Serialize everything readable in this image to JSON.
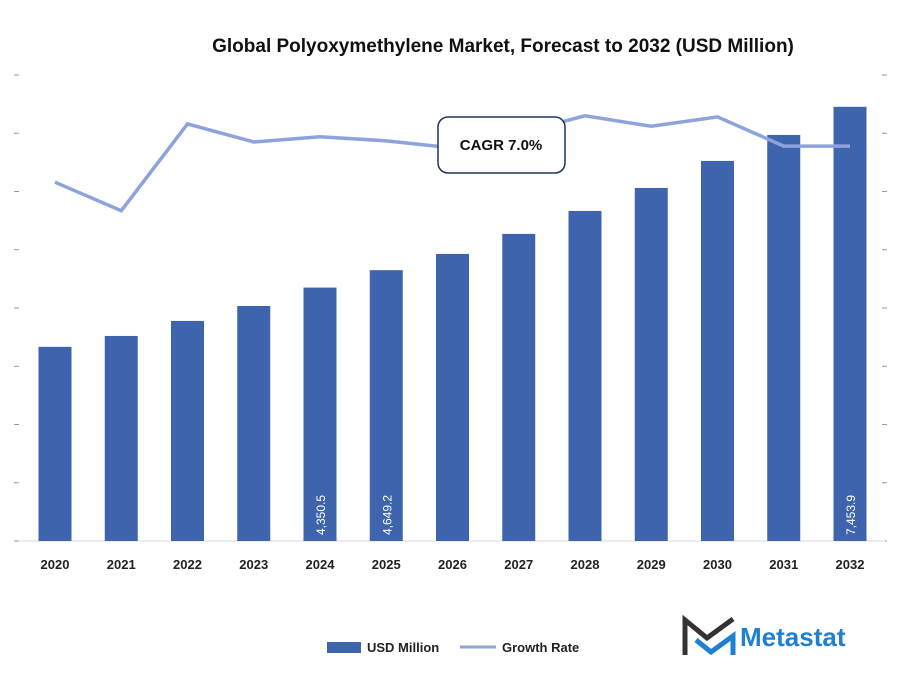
{
  "chart_data": {
    "type": "bar",
    "title": "Global Polyoxymethylene Market, Forecast to 2032 (USD Million)",
    "categories": [
      "2020",
      "2021",
      "2022",
      "2023",
      "2024",
      "2025",
      "2026",
      "2027",
      "2028",
      "2029",
      "2030",
      "2031",
      "2032"
    ],
    "series": [
      {
        "name": "USD Million",
        "type": "bar",
        "color": "#3d64ad",
        "values": [
          3333,
          3520,
          3778,
          4035,
          4350.5,
          4649.2,
          4928,
          5272,
          5666,
          6061,
          6525,
          6971,
          7453.9
        ],
        "data_labels": {
          "4": "4,350.5",
          "5": "4,649.2",
          "12": "7,453.9"
        }
      },
      {
        "name": "Growth Rate",
        "type": "line",
        "color": "#8ea3db",
        "values": [
          6.16,
          5.67,
          7.16,
          6.85,
          6.94,
          6.87,
          6.75,
          7.0,
          7.3,
          7.12,
          7.28,
          6.78,
          6.78
        ]
      }
    ],
    "ylim": [
      0,
      8000
    ],
    "y2lim": [
      0,
      8
    ],
    "tick_labels_shown": false,
    "grid": false,
    "legend_placement": "bottom",
    "annotation": "CAGR 7.0%"
  },
  "brand": {
    "name": "Metastat",
    "color": "#1f7fd1"
  }
}
